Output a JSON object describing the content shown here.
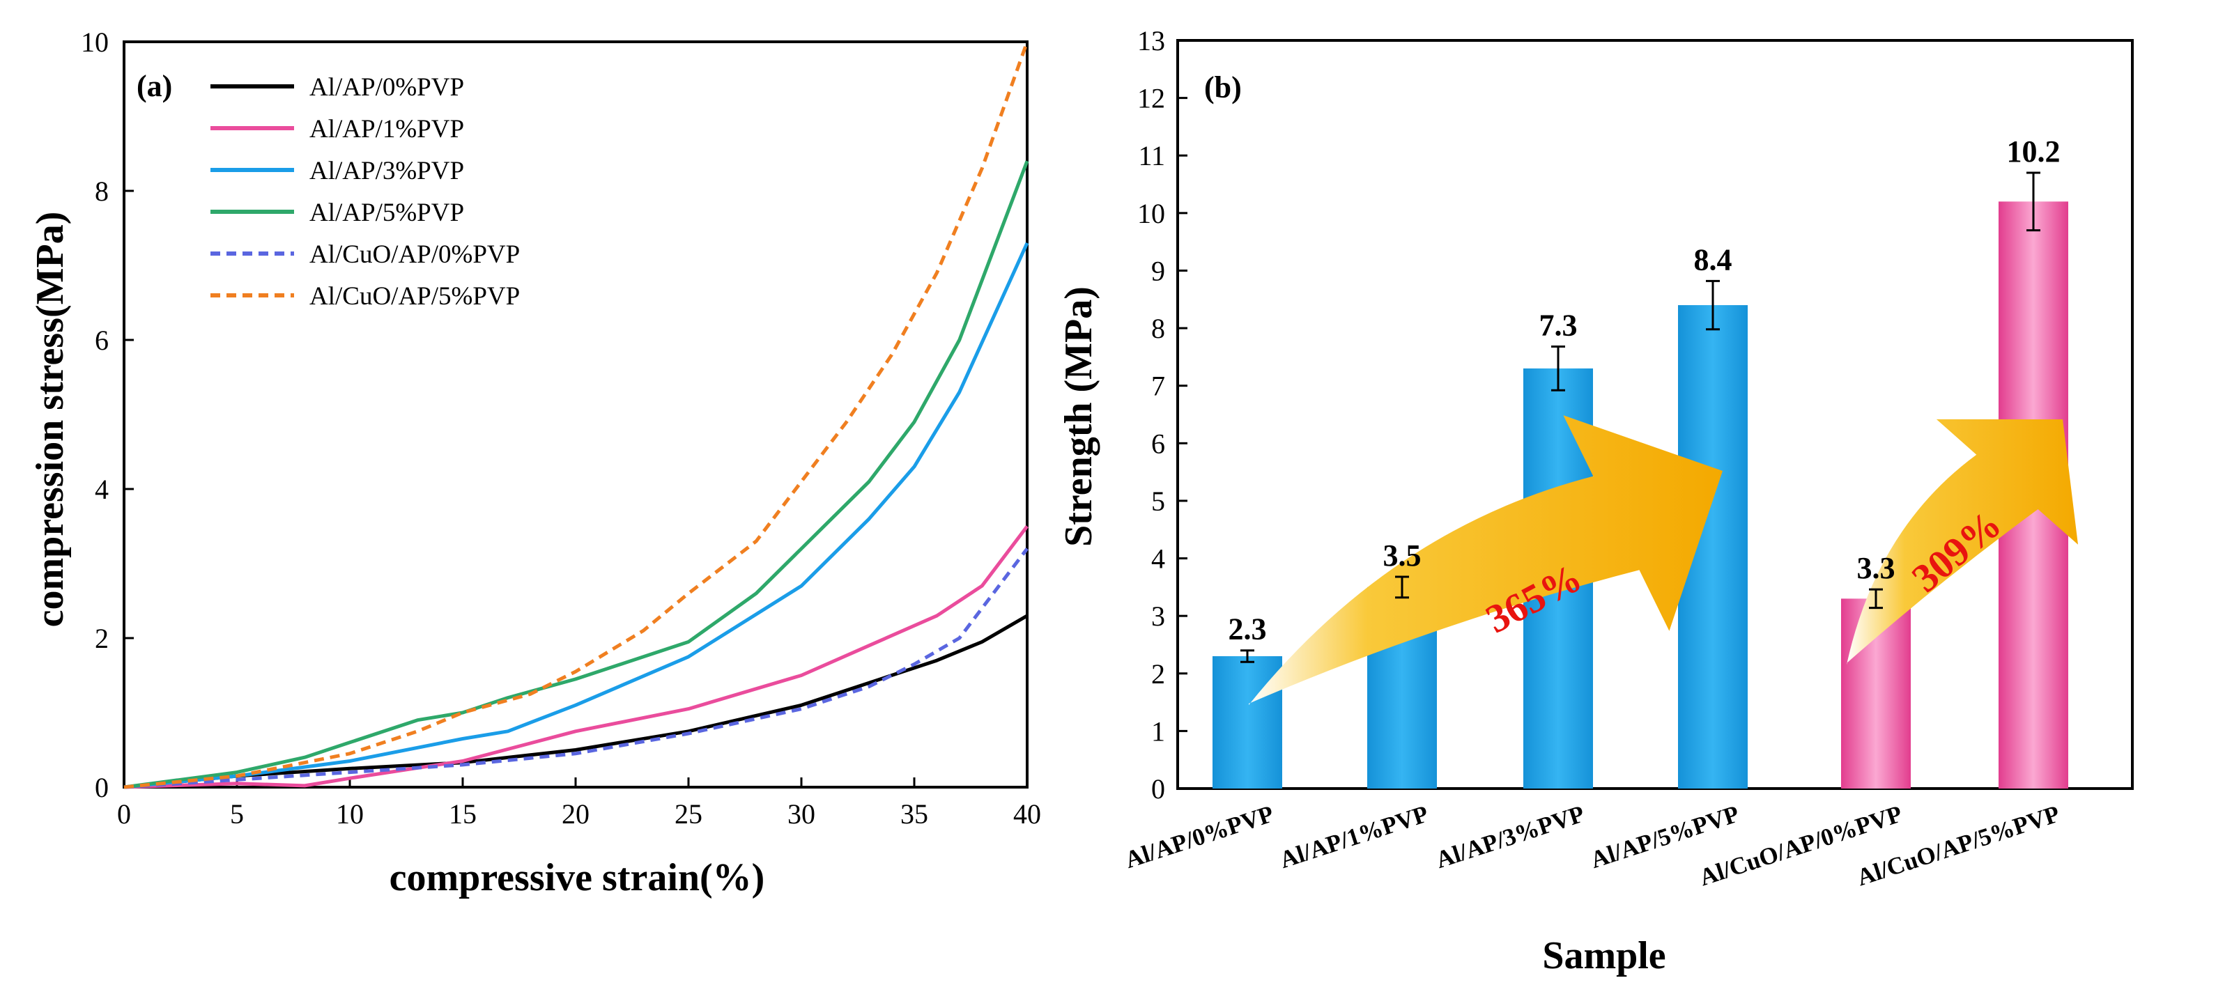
{
  "chart_data": [
    {
      "type": "line",
      "panel_label": "(a)",
      "title": "",
      "xlabel": "compressive strain(%)",
      "ylabel": "compression stress(MPa)",
      "xlim": [
        0,
        40
      ],
      "ylim": [
        0,
        10
      ],
      "xticks": [
        0,
        5,
        10,
        15,
        20,
        25,
        30,
        35,
        40
      ],
      "yticks": [
        0,
        2,
        4,
        6,
        8,
        10
      ],
      "legend_position": "top-left",
      "series": [
        {
          "name": "Al/AP/0%PVP",
          "color": "#000000",
          "dash": "solid",
          "x": [
            0,
            5,
            10,
            15,
            20,
            25,
            30,
            33,
            36,
            38,
            40
          ],
          "y": [
            0,
            0.15,
            0.25,
            0.33,
            0.5,
            0.75,
            1.1,
            1.4,
            1.7,
            1.95,
            2.3
          ]
        },
        {
          "name": "Al/AP/1%PVP",
          "color": "#ea4c9c",
          "dash": "solid",
          "x": [
            0,
            5,
            8,
            10,
            15,
            20,
            25,
            30,
            33,
            36,
            38,
            40
          ],
          "y": [
            0,
            0.05,
            0.02,
            0.12,
            0.35,
            0.75,
            1.05,
            1.5,
            1.9,
            2.3,
            2.7,
            3.5
          ]
        },
        {
          "name": "Al/AP/3%PVP",
          "color": "#1a9de8",
          "dash": "solid",
          "x": [
            0,
            5,
            10,
            15,
            17,
            20,
            25,
            30,
            33,
            35,
            37,
            40
          ],
          "y": [
            0,
            0.15,
            0.35,
            0.65,
            0.75,
            1.1,
            1.75,
            2.7,
            3.6,
            4.3,
            5.3,
            7.3
          ]
        },
        {
          "name": "Al/AP/5%PVP",
          "color": "#2ea86a",
          "dash": "solid",
          "x": [
            0,
            5,
            8,
            10,
            13,
            15,
            17,
            20,
            25,
            28,
            30,
            33,
            35,
            37,
            40
          ],
          "y": [
            0,
            0.2,
            0.4,
            0.6,
            0.9,
            1.0,
            1.2,
            1.45,
            1.95,
            2.6,
            3.2,
            4.1,
            4.9,
            6.0,
            8.4
          ]
        },
        {
          "name": "Al/CuO/AP/0%PVP",
          "color": "#5a66e0",
          "dash": "dashed",
          "x": [
            0,
            5,
            10,
            15,
            20,
            25,
            30,
            33,
            35,
            37,
            40
          ],
          "y": [
            0,
            0.1,
            0.2,
            0.3,
            0.45,
            0.72,
            1.05,
            1.35,
            1.65,
            2.0,
            3.2
          ]
        },
        {
          "name": "Al/CuO/AP/5%PVP",
          "color": "#f07f20",
          "dash": "dashed",
          "x": [
            0,
            5,
            10,
            13,
            15,
            18,
            20,
            23,
            25,
            28,
            30,
            32,
            34,
            36,
            38,
            40
          ],
          "y": [
            0,
            0.15,
            0.45,
            0.75,
            1.0,
            1.25,
            1.55,
            2.1,
            2.6,
            3.3,
            4.1,
            4.9,
            5.8,
            6.9,
            8.3,
            10.0
          ]
        }
      ]
    },
    {
      "type": "bar",
      "panel_label": "(b)",
      "title": "",
      "xlabel": "Sample",
      "ylabel": "Strength (MPa)",
      "ylim": [
        0,
        13
      ],
      "yticks": [
        0,
        1,
        2,
        3,
        4,
        5,
        6,
        7,
        8,
        9,
        10,
        11,
        12,
        13
      ],
      "categories": [
        "Al/AP/0%PVP",
        "Al/AP/1%PVP",
        "Al/AP/3%PVP",
        "Al/AP/5%PVP",
        "Al/CuO/AP/0%PVP",
        "Al/CuO/AP/5%PVP"
      ],
      "values": [
        2.3,
        3.5,
        7.3,
        8.4,
        3.3,
        10.2
      ],
      "value_labels": [
        "2.3",
        "3.5",
        "7.3",
        "8.4",
        "3.3",
        "10.2"
      ],
      "errors": [
        0.1,
        0.18,
        0.38,
        0.42,
        0.16,
        0.5
      ],
      "bar_colors": [
        "#1aa0e6",
        "#1aa0e6",
        "#1aa0e6",
        "#1aa0e6",
        "#e8489a",
        "#e8489a"
      ],
      "annotations": [
        {
          "text": "365%",
          "from_category": 0,
          "to_category": 3,
          "color": "#e8140f"
        },
        {
          "text": "309%",
          "from_category": 4,
          "to_category": 5,
          "color": "#e8140f"
        }
      ]
    }
  ]
}
